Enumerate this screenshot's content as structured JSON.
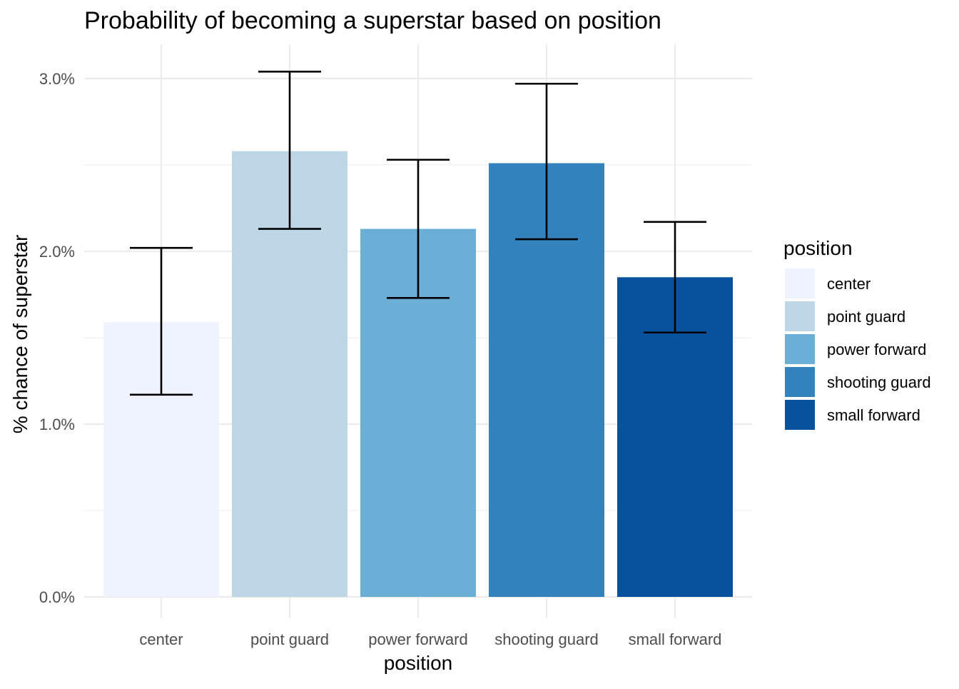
{
  "chart_data": {
    "type": "bar",
    "title": "Probability of becoming a superstar based on position",
    "xlabel": "position",
    "ylabel": "% chance of superstar",
    "categories": [
      "center",
      "point guard",
      "power forward",
      "shooting guard",
      "small forward"
    ],
    "values": [
      1.59,
      2.58,
      2.13,
      2.51,
      1.85
    ],
    "error_low": [
      1.17,
      2.13,
      1.73,
      2.07,
      1.53
    ],
    "error_high": [
      2.02,
      3.04,
      2.53,
      2.97,
      2.17
    ],
    "colors": [
      "#eff3ff",
      "#bdd7e7",
      "#6baed6",
      "#3182bd",
      "#08519c"
    ],
    "ylim": [
      0,
      3.2
    ],
    "y_ticks": [
      0,
      1,
      2,
      3
    ],
    "y_tick_labels": [
      "0.0%",
      "1.0%",
      "2.0%",
      "3.0%"
    ],
    "grid": true,
    "legend": {
      "title": "position",
      "placement": "right",
      "entries": [
        "center",
        "point guard",
        "power forward",
        "shooting guard",
        "small forward"
      ]
    }
  }
}
